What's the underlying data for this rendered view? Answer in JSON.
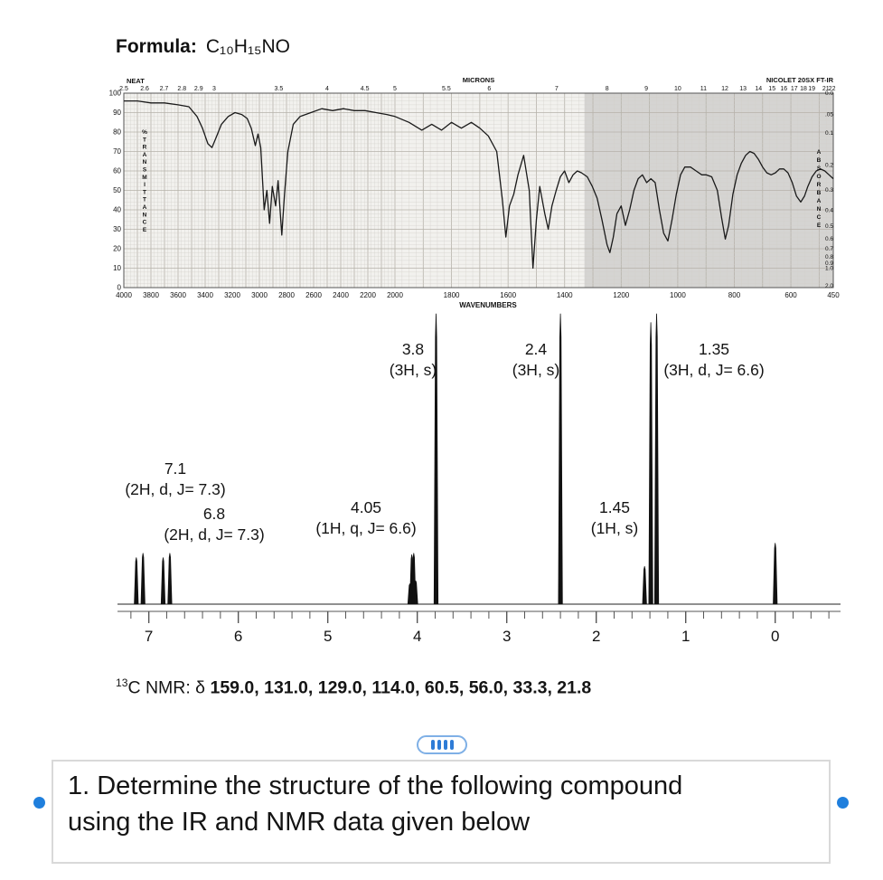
{
  "formula": {
    "label": "Formula:",
    "value": "C₁₀H₁₅NO"
  },
  "c13": {
    "isotope": "13",
    "prefix": "C NMR: δ ",
    "values": "159.0, 131.0, 129.0, 114.0, 60.5, 56.0, 33.3, 21.8"
  },
  "nmr_labels": [
    {
      "shift": "3.8",
      "detail": "(3H, s)"
    },
    {
      "shift": "2.4",
      "detail": "(3H, s)"
    },
    {
      "shift": "1.35",
      "detail": "(3H, d, J= 6.6)"
    },
    {
      "shift": "7.1",
      "detail": "(2H, d, J= 7.3)"
    },
    {
      "shift": "6.8",
      "detail": "(2H, d, J= 7.3)"
    },
    {
      "shift": "4.05",
      "detail": "(1H, q, J= 6.6)"
    },
    {
      "shift": "1.45",
      "detail": "(1H, s)"
    }
  ],
  "question": {
    "line1": "1. Determine the structure of the following compound",
    "line2": "using the IR and NMR data given below"
  },
  "drag_handle": {
    "bar_count": 4,
    "accent_color": "#2e7cd6",
    "handle_color": "#1f7fdd"
  },
  "chart_data": [
    {
      "type": "line",
      "name": "IR spectrum",
      "title": "NICOLET 20SX FT-IR",
      "sample": "NEAT",
      "xlabel": "WAVENUMBERS",
      "xlabel_top": "MICRONS",
      "ylabel_left": "%TRANSMITTANCE",
      "ylabel_right": "ABSORBANCE",
      "x_range": [
        4000,
        450
      ],
      "ylim": [
        0,
        100
      ],
      "x_ticks_bottom": [
        4000,
        3800,
        3600,
        3400,
        3200,
        3000,
        2800,
        2600,
        2400,
        2200,
        2000,
        1800,
        1600,
        1400,
        1200,
        1000,
        800,
        600,
        450
      ],
      "x_ticks_top_microns": [
        2.5,
        2.6,
        2.7,
        2.8,
        2.9,
        3,
        3.5,
        4,
        4.5,
        5,
        5.5,
        6,
        7,
        8,
        9,
        10,
        11,
        12,
        13,
        14,
        15,
        16,
        17,
        18,
        19,
        21,
        22
      ],
      "y_ticks_left": [
        100,
        90,
        80,
        70,
        60,
        50,
        40,
        30,
        20,
        10,
        0
      ],
      "y_ticks_right_absorbance": [
        "0.0",
        ".05",
        "0.1",
        "0.2",
        "0.3",
        "0.4",
        "0.5",
        "0.6",
        "0.7",
        "0.8",
        "0.9",
        "1.0",
        "2.0"
      ],
      "shaded_region": [
        1330,
        450
      ],
      "points": [
        [
          4000,
          96
        ],
        [
          3900,
          96
        ],
        [
          3800,
          95
        ],
        [
          3700,
          95
        ],
        [
          3600,
          94
        ],
        [
          3520,
          93
        ],
        [
          3460,
          88
        ],
        [
          3420,
          82
        ],
        [
          3380,
          74
        ],
        [
          3350,
          72
        ],
        [
          3320,
          77
        ],
        [
          3280,
          84
        ],
        [
          3230,
          88
        ],
        [
          3180,
          90
        ],
        [
          3130,
          89
        ],
        [
          3090,
          87
        ],
        [
          3060,
          82
        ],
        [
          3030,
          73
        ],
        [
          3010,
          79
        ],
        [
          2990,
          72
        ],
        [
          2965,
          40
        ],
        [
          2945,
          50
        ],
        [
          2925,
          33
        ],
        [
          2905,
          52
        ],
        [
          2880,
          42
        ],
        [
          2862,
          55
        ],
        [
          2835,
          27
        ],
        [
          2815,
          48
        ],
        [
          2790,
          70
        ],
        [
          2750,
          84
        ],
        [
          2700,
          88
        ],
        [
          2620,
          90
        ],
        [
          2540,
          92
        ],
        [
          2460,
          91
        ],
        [
          2380,
          92
        ],
        [
          2300,
          91
        ],
        [
          2220,
          91
        ],
        [
          2140,
          90
        ],
        [
          2060,
          89
        ],
        [
          2000,
          88
        ],
        [
          1950,
          85
        ],
        [
          1905,
          81
        ],
        [
          1870,
          84
        ],
        [
          1835,
          81
        ],
        [
          1800,
          85
        ],
        [
          1765,
          82
        ],
        [
          1730,
          85
        ],
        [
          1700,
          82
        ],
        [
          1670,
          78
        ],
        [
          1640,
          70
        ],
        [
          1620,
          45
        ],
        [
          1608,
          26
        ],
        [
          1595,
          42
        ],
        [
          1580,
          48
        ],
        [
          1565,
          58
        ],
        [
          1545,
          68
        ],
        [
          1525,
          50
        ],
        [
          1512,
          10
        ],
        [
          1500,
          35
        ],
        [
          1488,
          52
        ],
        [
          1470,
          38
        ],
        [
          1458,
          30
        ],
        [
          1445,
          42
        ],
        [
          1430,
          50
        ],
        [
          1415,
          57
        ],
        [
          1400,
          60
        ],
        [
          1385,
          54
        ],
        [
          1370,
          58
        ],
        [
          1355,
          60
        ],
        [
          1340,
          59
        ],
        [
          1320,
          57
        ],
        [
          1302,
          52
        ],
        [
          1285,
          46
        ],
        [
          1268,
          35
        ],
        [
          1250,
          22
        ],
        [
          1240,
          18
        ],
        [
          1228,
          26
        ],
        [
          1215,
          38
        ],
        [
          1200,
          42
        ],
        [
          1185,
          32
        ],
        [
          1170,
          40
        ],
        [
          1155,
          50
        ],
        [
          1140,
          56
        ],
        [
          1125,
          58
        ],
        [
          1110,
          54
        ],
        [
          1095,
          56
        ],
        [
          1080,
          54
        ],
        [
          1065,
          40
        ],
        [
          1050,
          28
        ],
        [
          1035,
          24
        ],
        [
          1020,
          35
        ],
        [
          1005,
          48
        ],
        [
          990,
          58
        ],
        [
          975,
          62
        ],
        [
          955,
          62
        ],
        [
          935,
          60
        ],
        [
          915,
          58
        ],
        [
          900,
          58
        ],
        [
          880,
          57
        ],
        [
          860,
          50
        ],
        [
          845,
          36
        ],
        [
          832,
          25
        ],
        [
          820,
          32
        ],
        [
          805,
          48
        ],
        [
          790,
          58
        ],
        [
          775,
          64
        ],
        [
          760,
          68
        ],
        [
          745,
          70
        ],
        [
          730,
          69
        ],
        [
          715,
          66
        ],
        [
          700,
          62
        ],
        [
          685,
          59
        ],
        [
          670,
          58
        ],
        [
          655,
          59
        ],
        [
          640,
          61
        ],
        [
          625,
          61
        ],
        [
          610,
          59
        ],
        [
          595,
          54
        ],
        [
          580,
          47
        ],
        [
          565,
          44
        ],
        [
          552,
          47
        ],
        [
          540,
          52
        ],
        [
          525,
          57
        ],
        [
          510,
          60
        ],
        [
          495,
          61
        ],
        [
          480,
          60
        ],
        [
          465,
          58
        ],
        [
          450,
          56
        ]
      ]
    },
    {
      "type": "line",
      "name": "1H NMR spectrum",
      "x_ticks": [
        7,
        6,
        5,
        4,
        3,
        2,
        1,
        0
      ],
      "x_range": [
        7.35,
        -0.73
      ],
      "peak_lines": [
        [
          7.14,
          0.16
        ],
        [
          7.065,
          0.175
        ],
        [
          6.84,
          0.16
        ],
        [
          6.765,
          0.175
        ],
        [
          4.083,
          0.07
        ],
        [
          4.061,
          0.17
        ],
        [
          4.039,
          0.175
        ],
        [
          4.017,
          0.08
        ],
        [
          3.79,
          1.0
        ],
        [
          2.4,
          1.0
        ],
        [
          1.46,
          0.13
        ],
        [
          1.39,
          0.97
        ],
        [
          1.325,
          1.0
        ],
        [
          0.0,
          0.21
        ]
      ],
      "peaks": [
        {
          "shift": 7.1,
          "integration": "2H",
          "multiplicity": "d",
          "J": 7.3
        },
        {
          "shift": 6.8,
          "integration": "2H",
          "multiplicity": "d",
          "J": 7.3
        },
        {
          "shift": 4.05,
          "integration": "1H",
          "multiplicity": "q",
          "J": 6.6
        },
        {
          "shift": 3.8,
          "integration": "3H",
          "multiplicity": "s"
        },
        {
          "shift": 2.4,
          "integration": "3H",
          "multiplicity": "s"
        },
        {
          "shift": 1.45,
          "integration": "1H",
          "multiplicity": "s"
        },
        {
          "shift": 1.35,
          "integration": "3H",
          "multiplicity": "d",
          "J": 6.6
        }
      ]
    }
  ]
}
